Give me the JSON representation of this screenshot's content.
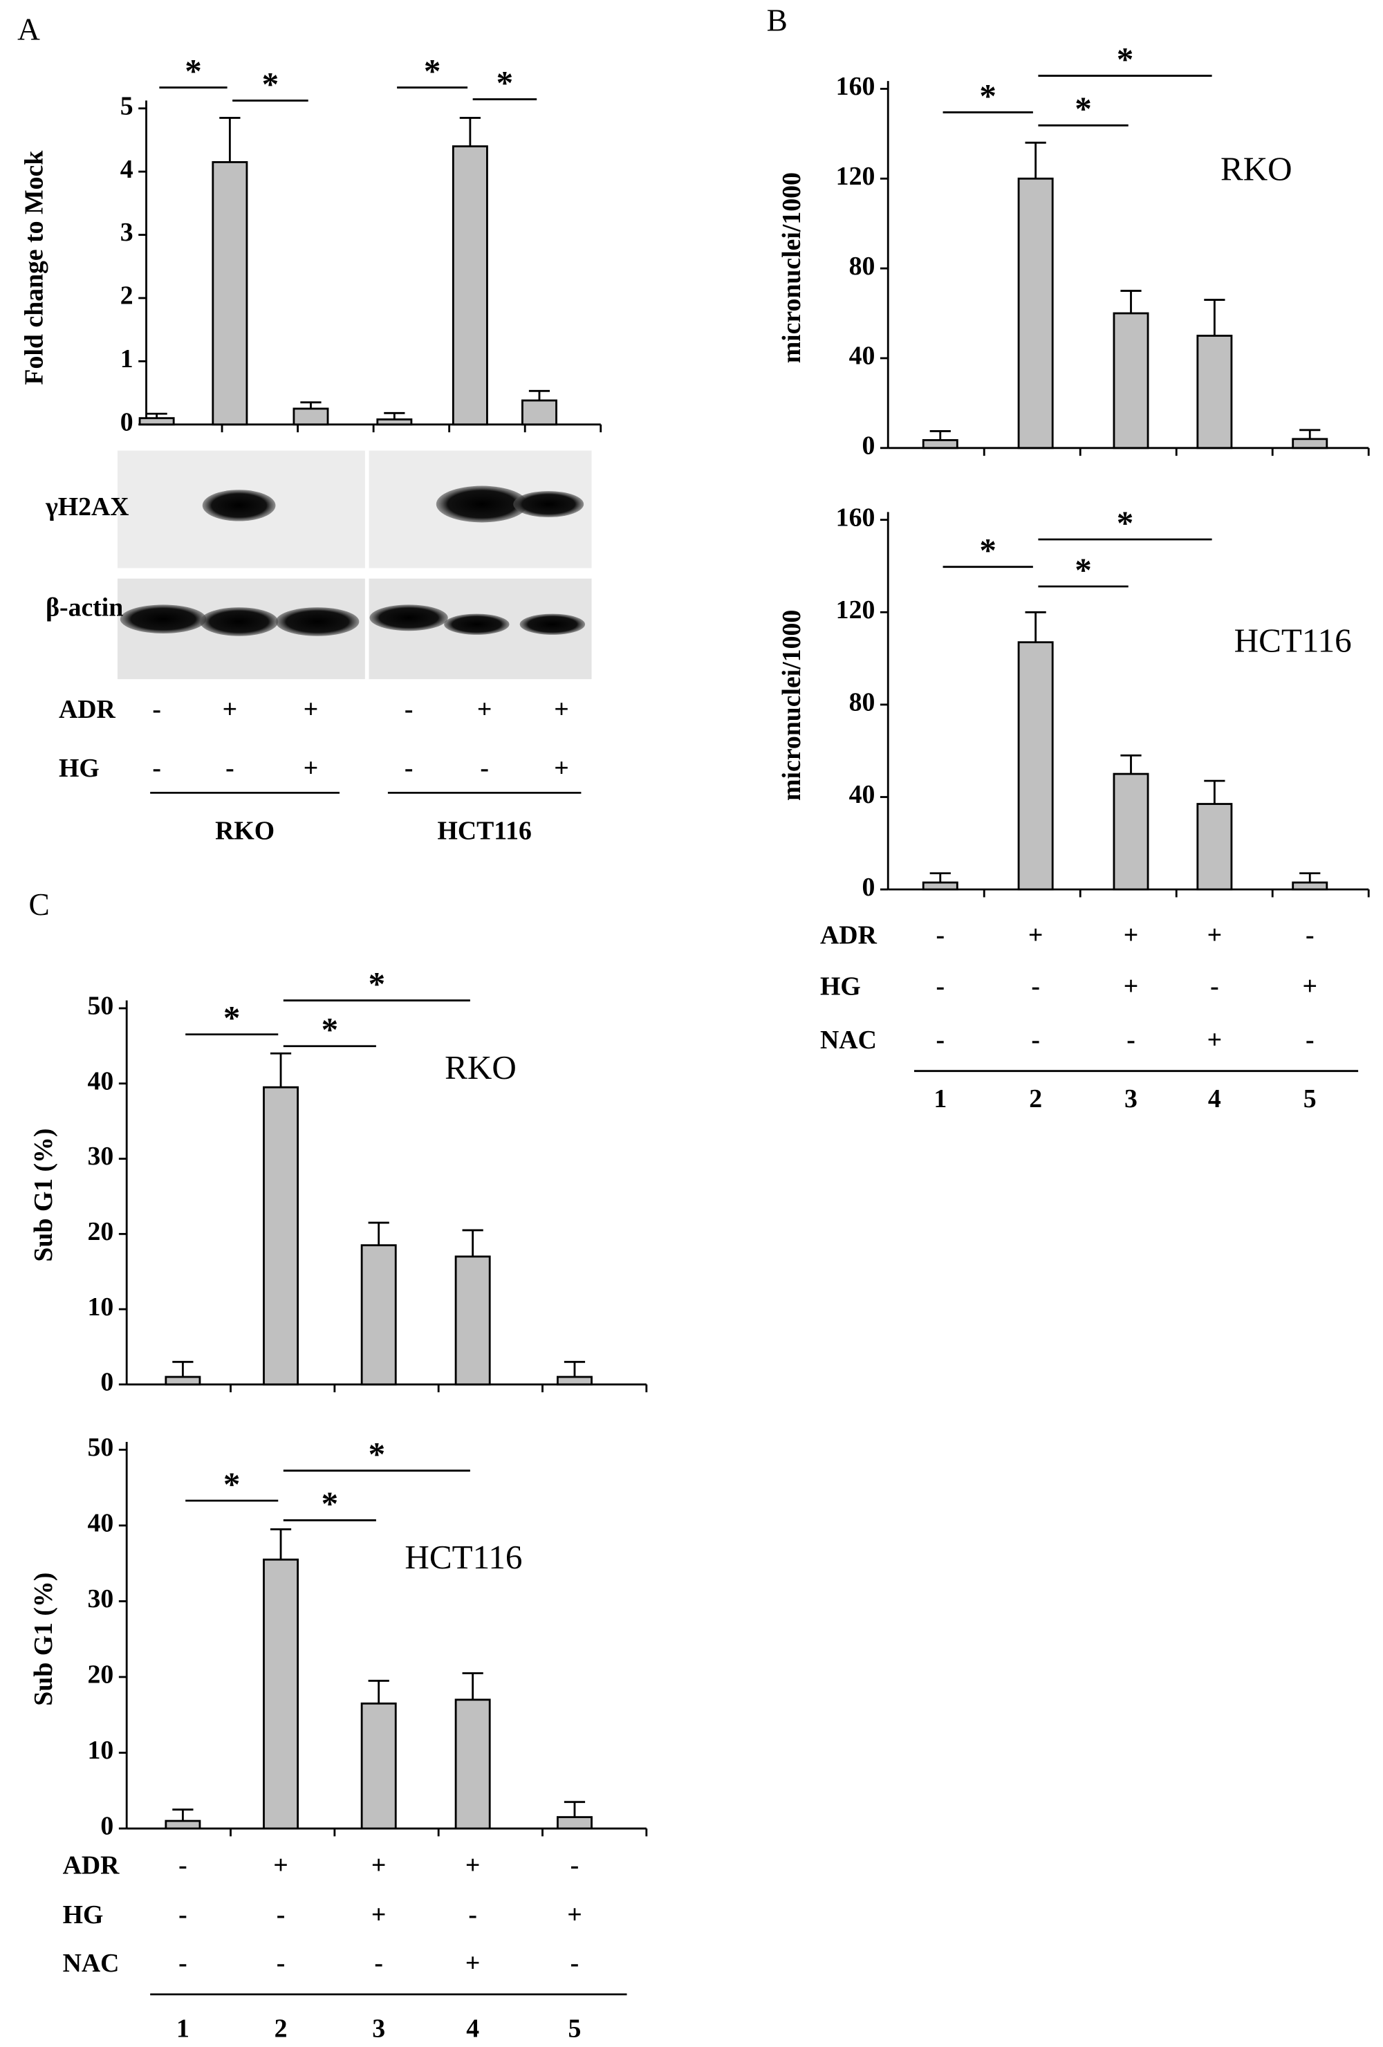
{
  "chart_data": [
    {
      "type": "bar",
      "panel": "A",
      "ylabel": "Fold change to Mock",
      "ylim": [
        0,
        5
      ],
      "yticks": [
        0,
        1,
        2,
        3,
        4,
        5
      ],
      "values": [
        0.1,
        4.15,
        0.25,
        0.08,
        4.4,
        0.38
      ],
      "errors": [
        0.07,
        0.7,
        0.1,
        0.1,
        0.45,
        0.15
      ],
      "color": "#c0c0c0",
      "significance": [
        {
          "pair": [
            0,
            1
          ],
          "label": "*"
        },
        {
          "pair": [
            1,
            2
          ],
          "label": "*"
        },
        {
          "pair": [
            3,
            4
          ],
          "label": "*"
        },
        {
          "pair": [
            4,
            5
          ],
          "label": "*"
        }
      ],
      "blots": [
        "γH2AX",
        "β-actin"
      ],
      "conditions": [
        {
          "name": "ADR",
          "values": [
            "-",
            "+",
            "+",
            "-",
            "+",
            "+"
          ]
        },
        {
          "name": "HG",
          "values": [
            "-",
            "-",
            "+",
            "-",
            "-",
            "+"
          ]
        }
      ],
      "groups": [
        "RKO",
        "HCT116"
      ]
    },
    {
      "type": "bar",
      "panel": "B",
      "cell_line": "RKO",
      "ylabel": "micronuclei/1000",
      "ylim": [
        0,
        160
      ],
      "yticks": [
        0,
        40,
        80,
        120,
        160
      ],
      "values": [
        3.5,
        120,
        60,
        50,
        4
      ],
      "errors": [
        4,
        16,
        10,
        16,
        4
      ],
      "color": "#c0c0c0",
      "significance": [
        {
          "pair": [
            0,
            1
          ],
          "label": "*"
        },
        {
          "pair": [
            1,
            2
          ],
          "label": "*"
        },
        {
          "pair": [
            1,
            3
          ],
          "label": "*"
        }
      ]
    },
    {
      "type": "bar",
      "cell_line": "HCT116",
      "ylabel": "micronuclei/1000",
      "ylim": [
        0,
        160
      ],
      "yticks": [
        0,
        40,
        80,
        120,
        160
      ],
      "values": [
        3,
        107,
        50,
        37,
        3
      ],
      "errors": [
        4,
        13,
        8,
        10,
        4
      ],
      "color": "#c0c0c0",
      "significance": [
        {
          "pair": [
            0,
            1
          ],
          "label": "*"
        },
        {
          "pair": [
            1,
            2
          ],
          "label": "*"
        },
        {
          "pair": [
            1,
            3
          ],
          "label": "*"
        }
      ],
      "conditions": [
        {
          "name": "ADR",
          "values": [
            "-",
            "+",
            "+",
            "+",
            "-"
          ]
        },
        {
          "name": "HG",
          "values": [
            "-",
            "-",
            "+",
            "-",
            "+"
          ]
        },
        {
          "name": "NAC",
          "values": [
            "-",
            "-",
            "-",
            "+",
            "-"
          ]
        }
      ],
      "categories": [
        "1",
        "2",
        "3",
        "4",
        "5"
      ]
    },
    {
      "type": "bar",
      "panel": "C",
      "cell_line": "RKO",
      "ylabel": "Sub G1 (%)",
      "ylim": [
        0,
        50
      ],
      "yticks": [
        0,
        10,
        20,
        30,
        40,
        50
      ],
      "values": [
        1,
        39.5,
        18.5,
        17,
        1
      ],
      "errors": [
        2,
        4.5,
        3,
        3.5,
        2
      ],
      "color": "#c0c0c0",
      "significance": [
        {
          "pair": [
            0,
            1
          ],
          "label": "*"
        },
        {
          "pair": [
            1,
            2
          ],
          "label": "*"
        },
        {
          "pair": [
            1,
            3
          ],
          "label": "*"
        }
      ]
    },
    {
      "type": "bar",
      "cell_line": "HCT116",
      "ylabel": "Sub G1 (%)",
      "ylim": [
        0,
        50
      ],
      "yticks": [
        0,
        10,
        20,
        30,
        40,
        50
      ],
      "values": [
        1,
        35.5,
        16.5,
        17,
        1.5
      ],
      "errors": [
        1.5,
        4,
        3,
        3.5,
        2
      ],
      "color": "#c0c0c0",
      "significance": [
        {
          "pair": [
            0,
            1
          ],
          "label": "*"
        },
        {
          "pair": [
            1,
            2
          ],
          "label": "*"
        },
        {
          "pair": [
            1,
            3
          ],
          "label": "*"
        }
      ],
      "conditions": [
        {
          "name": "ADR",
          "values": [
            "-",
            "+",
            "+",
            "+",
            "-"
          ]
        },
        {
          "name": "HG",
          "values": [
            "-",
            "-",
            "+",
            "-",
            "+"
          ]
        },
        {
          "name": "NAC",
          "values": [
            "-",
            "-",
            "-",
            "+",
            "-"
          ]
        }
      ],
      "categories": [
        "1",
        "2",
        "3",
        "4",
        "5"
      ]
    }
  ]
}
